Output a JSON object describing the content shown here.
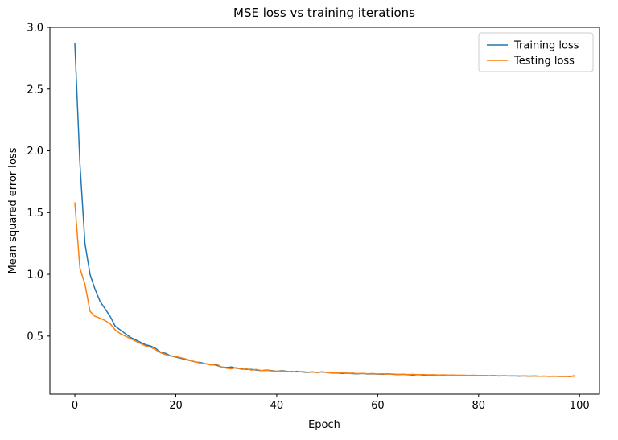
{
  "figure": {
    "background": "#ffffff"
  },
  "chart_data": {
    "type": "line",
    "title": "MSE loss vs training iterations",
    "xlabel": "Epoch",
    "ylabel": "Mean squared error loss",
    "xlim": [
      -4.95,
      103.95
    ],
    "ylim": [
      0.03,
      3.0
    ],
    "xticks": [
      0,
      20,
      40,
      60,
      80,
      100
    ],
    "yticks": [
      0.5,
      1.0,
      1.5,
      2.0,
      2.5,
      3.0
    ],
    "grid": false,
    "legend": {
      "position": "upper right",
      "entries": [
        "Training loss",
        "Testing loss"
      ]
    },
    "x": [
      0,
      1,
      2,
      3,
      4,
      5,
      6,
      7,
      8,
      9,
      10,
      11,
      12,
      13,
      14,
      15,
      16,
      17,
      18,
      19,
      20,
      21,
      22,
      23,
      24,
      25,
      26,
      27,
      28,
      29,
      30,
      31,
      32,
      33,
      34,
      35,
      36,
      37,
      38,
      39,
      40,
      41,
      42,
      43,
      44,
      45,
      46,
      47,
      48,
      49,
      50,
      51,
      52,
      53,
      54,
      55,
      56,
      57,
      58,
      59,
      60,
      61,
      62,
      63,
      64,
      65,
      66,
      67,
      68,
      69,
      70,
      71,
      72,
      73,
      74,
      75,
      76,
      77,
      78,
      79,
      80,
      81,
      82,
      83,
      84,
      85,
      86,
      87,
      88,
      89,
      90,
      91,
      92,
      93,
      94,
      95,
      96,
      97,
      98,
      99
    ],
    "series": [
      {
        "name": "Training loss",
        "color": "#1f77b4",
        "values": [
          2.87,
          1.9,
          1.25,
          1.0,
          0.88,
          0.78,
          0.72,
          0.66,
          0.58,
          0.55,
          0.52,
          0.49,
          0.47,
          0.45,
          0.43,
          0.42,
          0.4,
          0.37,
          0.36,
          0.34,
          0.33,
          0.32,
          0.31,
          0.3,
          0.29,
          0.285,
          0.275,
          0.27,
          0.265,
          0.25,
          0.245,
          0.25,
          0.24,
          0.235,
          0.23,
          0.23,
          0.225,
          0.22,
          0.225,
          0.22,
          0.215,
          0.22,
          0.215,
          0.21,
          0.215,
          0.21,
          0.205,
          0.21,
          0.205,
          0.21,
          0.205,
          0.2,
          0.2,
          0.198,
          0.2,
          0.196,
          0.195,
          0.198,
          0.193,
          0.195,
          0.192,
          0.19,
          0.195,
          0.19,
          0.188,
          0.19,
          0.187,
          0.185,
          0.188,
          0.185,
          0.183,
          0.185,
          0.182,
          0.184,
          0.181,
          0.183,
          0.18,
          0.182,
          0.18,
          0.181,
          0.179,
          0.181,
          0.178,
          0.18,
          0.177,
          0.179,
          0.177,
          0.178,
          0.176,
          0.178,
          0.175,
          0.177,
          0.175,
          0.176,
          0.174,
          0.176,
          0.174,
          0.175,
          0.173,
          0.178
        ]
      },
      {
        "name": "Testing loss",
        "color": "#ff7f0e",
        "values": [
          1.58,
          1.05,
          0.92,
          0.7,
          0.66,
          0.645,
          0.625,
          0.6,
          0.55,
          0.52,
          0.5,
          0.48,
          0.46,
          0.44,
          0.42,
          0.41,
          0.39,
          0.365,
          0.35,
          0.34,
          0.335,
          0.325,
          0.315,
          0.3,
          0.29,
          0.28,
          0.275,
          0.265,
          0.275,
          0.25,
          0.24,
          0.235,
          0.245,
          0.23,
          0.235,
          0.225,
          0.23,
          0.22,
          0.222,
          0.218,
          0.215,
          0.218,
          0.212,
          0.215,
          0.21,
          0.213,
          0.208,
          0.21,
          0.205,
          0.212,
          0.205,
          0.202,
          0.2,
          0.203,
          0.198,
          0.2,
          0.196,
          0.198,
          0.195,
          0.197,
          0.193,
          0.195,
          0.192,
          0.193,
          0.19,
          0.191,
          0.189,
          0.19,
          0.187,
          0.189,
          0.186,
          0.187,
          0.185,
          0.186,
          0.184,
          0.185,
          0.183,
          0.184,
          0.182,
          0.183,
          0.181,
          0.182,
          0.18,
          0.181,
          0.179,
          0.18,
          0.178,
          0.179,
          0.177,
          0.178,
          0.176,
          0.177,
          0.175,
          0.176,
          0.174,
          0.175,
          0.173,
          0.174,
          0.172,
          0.176
        ]
      }
    ]
  }
}
